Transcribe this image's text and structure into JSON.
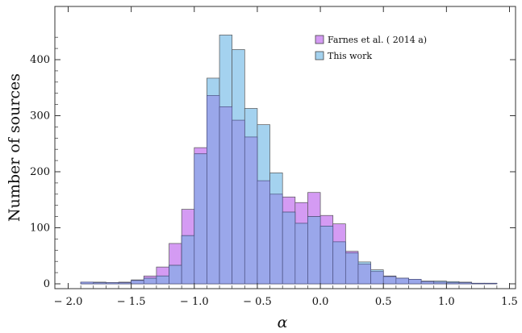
{
  "chart_data": {
    "type": "bar",
    "subtype": "overlapping-histogram",
    "title": "",
    "xlabel": "α",
    "ylabel": "Number of sources",
    "xlim": [
      -2.0,
      1.5
    ],
    "ylim": [
      0,
      450
    ],
    "x_ticks": [
      -2.0,
      -1.5,
      -1.0,
      -0.5,
      0.0,
      0.5,
      1.0,
      1.5
    ],
    "x_tick_labels": [
      "− 2.0",
      "− 1.5",
      "− 1.0",
      "− 0.5",
      "0.0",
      "0.5",
      "1.0",
      "1.5"
    ],
    "y_ticks": [
      0,
      100,
      200,
      300,
      400
    ],
    "y_tick_labels": [
      "0",
      "100",
      "200",
      "300",
      "400"
    ],
    "bin_width": 0.1,
    "bin_starts": [
      -1.9,
      -1.8,
      -1.7,
      -1.6,
      -1.5,
      -1.4,
      -1.3,
      -1.2,
      -1.1,
      -1.0,
      -0.9,
      -0.8,
      -0.7,
      -0.6,
      -0.5,
      -0.4,
      -0.3,
      -0.2,
      -0.1,
      0.0,
      0.1,
      0.2,
      0.3,
      0.4,
      0.5,
      0.6,
      0.7,
      0.8,
      0.9,
      1.0,
      1.1,
      1.2,
      1.3
    ],
    "series": [
      {
        "name": "Farnes et al. ( 2014 a)",
        "color": "#d49bf3",
        "values": [
          3,
          2,
          2,
          3,
          6,
          14,
          30,
          72,
          133,
          243,
          336,
          316,
          292,
          262,
          184,
          160,
          155,
          145,
          163,
          122,
          107,
          58,
          35,
          22,
          14,
          10,
          8,
          4,
          3,
          2,
          2,
          1,
          1
        ]
      },
      {
        "name": "This work",
        "color": "#a4d2ef",
        "values": [
          3,
          3,
          2,
          2,
          7,
          10,
          14,
          33,
          86,
          232,
          367,
          444,
          418,
          313,
          284,
          198,
          128,
          108,
          120,
          103,
          75,
          55,
          39,
          25,
          13,
          10,
          8,
          5,
          5,
          4,
          3,
          1,
          1
        ]
      }
    ],
    "legend_position": "top-right",
    "grid": false
  }
}
